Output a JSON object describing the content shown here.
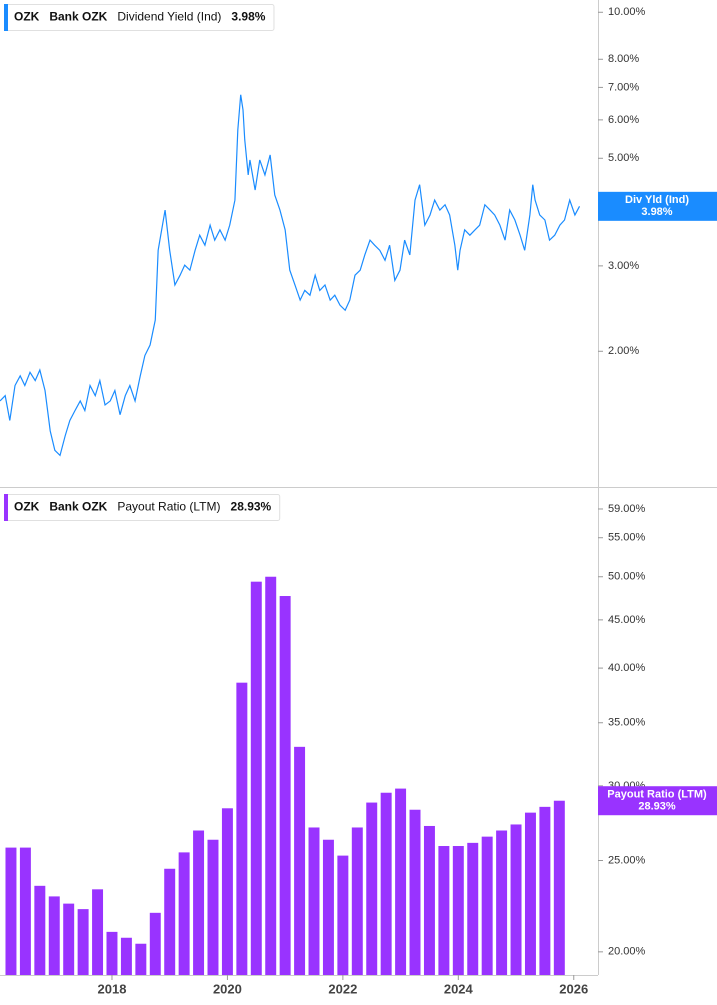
{
  "chart_data": [
    {
      "type": "line",
      "log_scale": true,
      "x": [
        2016.06,
        2016.15,
        2016.23,
        2016.32,
        2016.41,
        2016.49,
        2016.58,
        2016.67,
        2016.75,
        2016.84,
        2016.93,
        2017.01,
        2017.1,
        2017.19,
        2017.27,
        2017.36,
        2017.45,
        2017.53,
        2017.62,
        2017.71,
        2017.79,
        2017.88,
        2017.97,
        2018.05,
        2018.14,
        2018.23,
        2018.31,
        2018.4,
        2018.49,
        2018.57,
        2018.66,
        2018.75,
        2018.8,
        2018.83,
        2018.92,
        2019.0,
        2019.09,
        2019.18,
        2019.26,
        2019.35,
        2019.44,
        2019.52,
        2019.61,
        2019.7,
        2019.78,
        2019.87,
        2019.96,
        2020.04,
        2020.13,
        2020.18,
        2020.23,
        2020.27,
        2020.3,
        2020.36,
        2020.39,
        2020.48,
        2020.56,
        2020.65,
        2020.74,
        2020.82,
        2020.91,
        2021.0,
        2021.08,
        2021.17,
        2021.26,
        2021.34,
        2021.43,
        2021.52,
        2021.6,
        2021.69,
        2021.78,
        2021.86,
        2021.95,
        2022.04,
        2022.12,
        2022.21,
        2022.3,
        2022.38,
        2022.47,
        2022.55,
        2022.64,
        2022.73,
        2022.81,
        2022.9,
        2022.99,
        2023.07,
        2023.16,
        2023.25,
        2023.33,
        2023.42,
        2023.51,
        2023.59,
        2023.68,
        2023.77,
        2023.85,
        2023.94,
        2023.99,
        2024.03,
        2024.11,
        2024.2,
        2024.29,
        2024.37,
        2024.46,
        2024.55,
        2024.63,
        2024.72,
        2024.81,
        2024.89,
        2024.98,
        2025.07,
        2025.15,
        2025.24,
        2025.29,
        2025.33,
        2025.41,
        2025.5,
        2025.58,
        2025.67,
        2025.76,
        2025.84,
        2025.93,
        2026.02,
        2026.1
      ],
      "series": [
        {
          "ticker": "OZK",
          "company": "Bank OZK",
          "name": "Dividend Yield (Ind)",
          "tag_label": "Div Yld (Ind)",
          "last_label": "3.98%",
          "color": "#1a8cff",
          "values": [
            1.58,
            1.62,
            1.44,
            1.7,
            1.78,
            1.7,
            1.81,
            1.74,
            1.83,
            1.66,
            1.37,
            1.25,
            1.22,
            1.34,
            1.44,
            1.51,
            1.58,
            1.51,
            1.7,
            1.62,
            1.74,
            1.55,
            1.58,
            1.66,
            1.48,
            1.62,
            1.7,
            1.58,
            1.78,
            1.96,
            2.06,
            2.32,
            3.23,
            3.39,
            3.91,
            3.23,
            2.74,
            2.87,
            3.01,
            2.94,
            3.23,
            3.47,
            3.31,
            3.64,
            3.39,
            3.56,
            3.39,
            3.64,
            4.1,
            5.72,
            6.76,
            6.29,
            5.46,
            4.62,
            4.96,
            4.3,
            4.96,
            4.62,
            5.08,
            4.2,
            3.91,
            3.56,
            2.94,
            2.74,
            2.55,
            2.67,
            2.61,
            2.87,
            2.67,
            2.74,
            2.55,
            2.61,
            2.49,
            2.43,
            2.55,
            2.87,
            2.94,
            3.16,
            3.39,
            3.31,
            3.23,
            3.08,
            3.31,
            2.8,
            2.94,
            3.39,
            3.16,
            4.1,
            4.41,
            3.64,
            3.82,
            4.1,
            3.91,
            4.01,
            3.82,
            3.31,
            2.94,
            3.23,
            3.56,
            3.47,
            3.56,
            3.64,
            4.01,
            3.91,
            3.82,
            3.64,
            3.39,
            3.91,
            3.73,
            3.47,
            3.23,
            3.82,
            4.41,
            4.1,
            3.82,
            3.73,
            3.39,
            3.47,
            3.64,
            3.73,
            4.1,
            3.82,
            3.98
          ]
        }
      ],
      "xlim": [
        2016.06,
        2026.42
      ],
      "ylim": [
        1.05,
        10.6
      ],
      "yticks": [
        {
          "value": 10,
          "label": "10.00%"
        },
        {
          "value": 8,
          "label": "8.00%"
        },
        {
          "value": 7,
          "label": "7.00%"
        },
        {
          "value": 6,
          "label": "6.00%"
        },
        {
          "value": 5,
          "label": "5.00%"
        },
        {
          "value": 3,
          "label": "3.00%"
        },
        {
          "value": 2,
          "label": "2.00%"
        }
      ]
    },
    {
      "type": "bar",
      "log_scale": true,
      "x": [
        2016.25,
        2016.5,
        2016.75,
        2017,
        2017.25,
        2017.5,
        2017.75,
        2018,
        2018.25,
        2018.5,
        2018.75,
        2019,
        2019.25,
        2019.5,
        2019.75,
        2020,
        2020.25,
        2020.5,
        2020.75,
        2021,
        2021.25,
        2021.5,
        2021.75,
        2022,
        2022.25,
        2022.5,
        2022.75,
        2023,
        2023.25,
        2023.5,
        2023.75,
        2024,
        2024.25,
        2024.5,
        2024.75,
        2025,
        2025.25,
        2025.5,
        2025.75
      ],
      "series": [
        {
          "ticker": "OZK",
          "company": "Bank OZK",
          "name": "Payout Ratio (LTM)",
          "tag_label": "Payout Ratio (LTM)",
          "last_label": "28.93%",
          "color": "#9933ff",
          "values": [
            25.8,
            25.8,
            23.5,
            22.9,
            22.5,
            22.2,
            23.3,
            21.0,
            20.7,
            20.4,
            22.0,
            24.5,
            25.5,
            26.9,
            26.3,
            28.4,
            38.6,
            49.4,
            50.0,
            47.7,
            33.0,
            27.1,
            26.3,
            25.3,
            27.1,
            28.8,
            29.5,
            29.8,
            28.3,
            27.2,
            25.9,
            25.9,
            26.1,
            26.5,
            26.9,
            27.3,
            28.1,
            28.5,
            28.93
          ]
        }
      ],
      "xlim": [
        2016.06,
        2026.42
      ],
      "xticks": [
        2018,
        2020,
        2022,
        2024,
        2026
      ],
      "ylim": [
        18.9,
        61.8
      ],
      "yticks": [
        {
          "value": 59,
          "label": "59.00%"
        },
        {
          "value": 55,
          "label": "55.00%"
        },
        {
          "value": 50,
          "label": "50.00%"
        },
        {
          "value": 45,
          "label": "45.00%"
        },
        {
          "value": 40,
          "label": "40.00%"
        },
        {
          "value": 35,
          "label": "35.00%"
        },
        {
          "value": 30,
          "label": "30.00%"
        },
        {
          "value": 25,
          "label": "25.00%"
        },
        {
          "value": 20,
          "label": "20.00%"
        }
      ]
    }
  ]
}
